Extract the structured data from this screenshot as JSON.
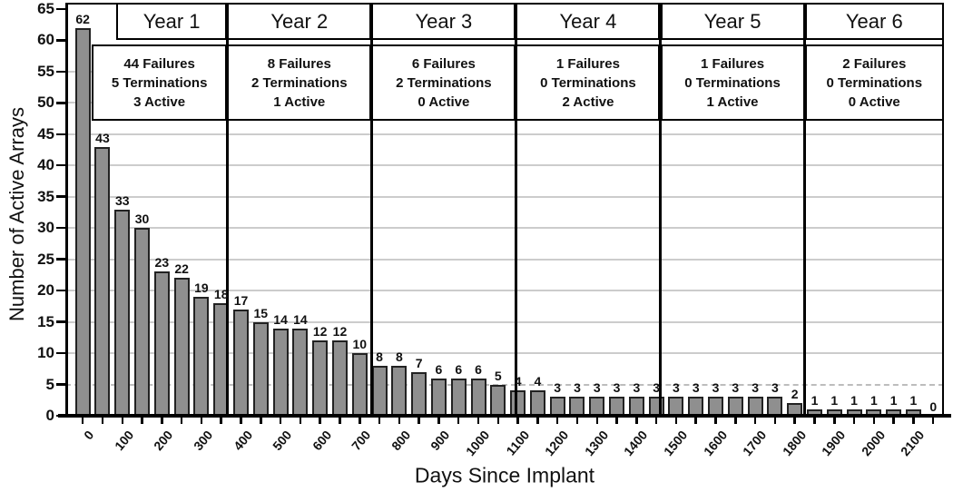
{
  "chart_data": {
    "type": "bar",
    "title": "",
    "xlabel": "Days Since Implant",
    "ylabel": "Number of Active Arrays",
    "x": [
      0,
      50,
      100,
      150,
      200,
      250,
      300,
      350,
      400,
      450,
      500,
      550,
      600,
      650,
      700,
      750,
      800,
      850,
      900,
      950,
      1000,
      1050,
      1100,
      1150,
      1200,
      1250,
      1300,
      1350,
      1400,
      1450,
      1500,
      1550,
      1600,
      1650,
      1700,
      1750,
      1800,
      1850,
      1900,
      1950,
      2000,
      2050,
      2100,
      2150
    ],
    "values": [
      62,
      43,
      33,
      30,
      23,
      22,
      19,
      18,
      17,
      15,
      14,
      14,
      12,
      12,
      10,
      8,
      8,
      7,
      6,
      6,
      6,
      5,
      4,
      4,
      3,
      3,
      3,
      3,
      3,
      3,
      3,
      3,
      3,
      3,
      3,
      3,
      2,
      1,
      1,
      1,
      1,
      1,
      1,
      0
    ],
    "ylim": [
      0,
      65
    ],
    "yticks": [
      0,
      5,
      10,
      15,
      20,
      25,
      30,
      35,
      40,
      45,
      50,
      55,
      60,
      65
    ],
    "xtick_labels": [
      "0",
      "100",
      "200",
      "300",
      "400",
      "500",
      "600",
      "700",
      "800",
      "900",
      "1000",
      "1100",
      "1200",
      "1300",
      "1400",
      "1500",
      "1600",
      "1700",
      "1800",
      "1900",
      "2000",
      "2100"
    ],
    "grid": {
      "orientation": "horizontal",
      "step": 5,
      "dashed_at": 5,
      "solid_from": 10,
      "solid_to": 55
    },
    "year_sections": [
      {
        "label": "Year 1",
        "start_day": 0,
        "end_day": 365,
        "stats": [
          "44 Failures",
          "5 Terminations",
          "3 Active"
        ]
      },
      {
        "label": "Year 2",
        "start_day": 365,
        "end_day": 730,
        "stats": [
          "8 Failures",
          "2 Terminations",
          "1 Active"
        ]
      },
      {
        "label": "Year 3",
        "start_day": 730,
        "end_day": 1095,
        "stats": [
          "6 Failures",
          "2 Terminations",
          "0 Active"
        ]
      },
      {
        "label": "Year 4",
        "start_day": 1095,
        "end_day": 1460,
        "stats": [
          "1 Failures",
          "0 Terminations",
          "2 Active"
        ]
      },
      {
        "label": "Year 5",
        "start_day": 1460,
        "end_day": 1825,
        "stats": [
          "1 Failures",
          "0 Terminations",
          "1 Active"
        ]
      },
      {
        "label": "Year 6",
        "start_day": 1825,
        "end_day": 2190,
        "stats": [
          "2 Failures",
          "0 Terminations",
          "0 Active"
        ]
      }
    ],
    "colors": {
      "bar_fill": "#8f8f8f",
      "bar_border": "#222222",
      "gridline": "#cccccc",
      "dashed_gridline": "#bdbdbd",
      "frame": "#000000",
      "text": "#111111",
      "background": "#ffffff"
    }
  }
}
